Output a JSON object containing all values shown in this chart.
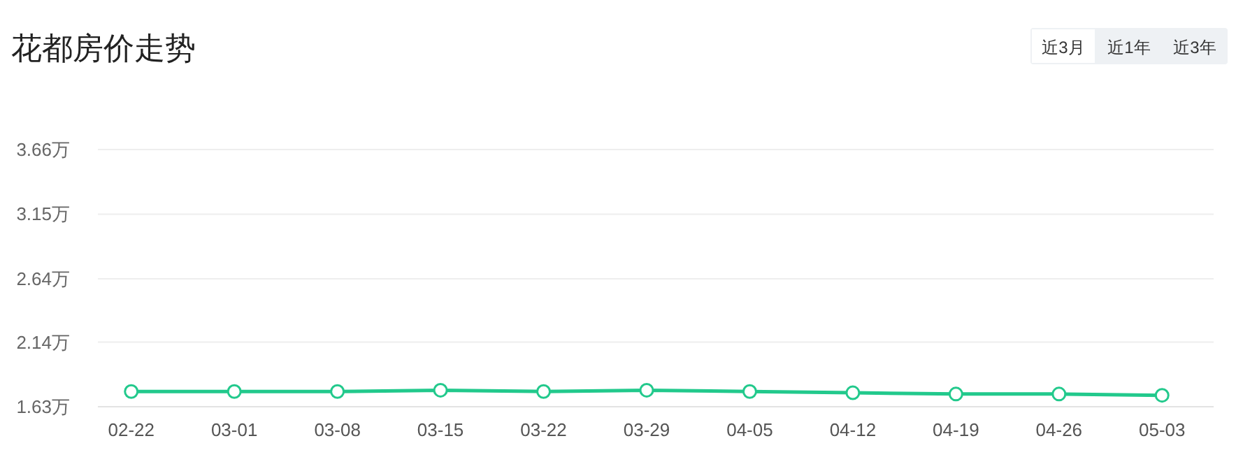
{
  "chart_data": {
    "type": "line",
    "title": "花都房价走势",
    "categories": [
      "02-22",
      "03-01",
      "03-08",
      "03-15",
      "03-22",
      "03-29",
      "04-05",
      "04-12",
      "04-19",
      "04-26",
      "05-03"
    ],
    "series": [
      {
        "color": "#22c98c",
        "values": [
          1.75,
          1.75,
          1.75,
          1.76,
          1.75,
          1.76,
          1.75,
          1.74,
          1.73,
          1.73,
          1.72
        ]
      }
    ],
    "ylim": [
      1.63,
      3.66
    ],
    "yticks": [
      {
        "value": 1.63,
        "label": "1.63万"
      },
      {
        "value": 2.14,
        "label": "2.14万"
      },
      {
        "value": 2.64,
        "label": "2.64万"
      },
      {
        "value": 3.15,
        "label": "3.15万"
      },
      {
        "value": 3.66,
        "label": "3.66万"
      }
    ],
    "grid": "y",
    "marker": "circle",
    "line_style": "solid",
    "annotations": [
      "近3月",
      "近1年",
      "近3年"
    ]
  }
}
